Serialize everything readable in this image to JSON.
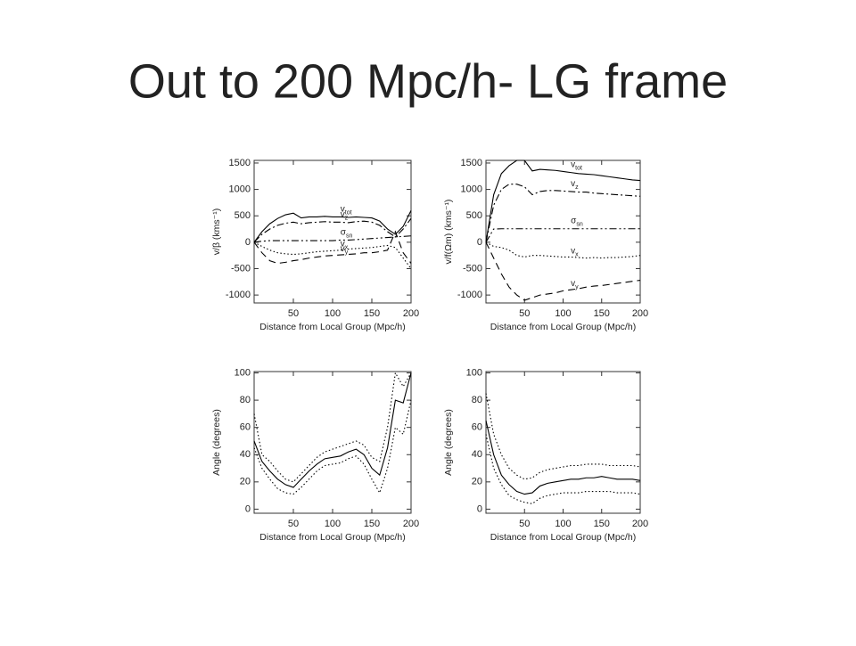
{
  "title": "Out to 200 Mpc/h- LG frame",
  "chart_data": [
    {
      "type": "line",
      "ylabel": "v/β (kms⁻¹)",
      "xlabel": "Distance from Local Group (Mpc/h)",
      "xlim": [
        0,
        200
      ],
      "ylim": [
        -1150,
        1550
      ],
      "xticks": [
        50,
        100,
        150,
        200
      ],
      "yticks": [
        -1000,
        -500,
        0,
        500,
        1000,
        1500
      ],
      "x": [
        0,
        10,
        20,
        30,
        40,
        50,
        60,
        70,
        80,
        90,
        100,
        110,
        120,
        130,
        140,
        150,
        160,
        170,
        180,
        190,
        200
      ],
      "series": [
        {
          "name": "v",
          "sub": "tot",
          "dash": "solid",
          "color": "#000000",
          "values": [
            0,
            200,
            350,
            450,
            520,
            550,
            460,
            480,
            480,
            490,
            480,
            480,
            470,
            480,
            470,
            460,
            400,
            250,
            150,
            300,
            600
          ]
        },
        {
          "name": "v",
          "sub": "z",
          "dash": "dashdot",
          "color": "#000000",
          "values": [
            0,
            150,
            250,
            320,
            360,
            380,
            350,
            370,
            380,
            390,
            380,
            380,
            370,
            390,
            400,
            380,
            320,
            200,
            100,
            250,
            450
          ]
        },
        {
          "name": "σ",
          "sub": "sn",
          "dash": "dashdotdot",
          "color": "#000000",
          "values": [
            0,
            20,
            30,
            30,
            30,
            30,
            30,
            30,
            30,
            30,
            30,
            40,
            40,
            50,
            60,
            70,
            80,
            90,
            100,
            110,
            120
          ]
        },
        {
          "name": "v",
          "sub": "x",
          "dash": "dotted",
          "color": "#000000",
          "values": [
            0,
            -80,
            -150,
            -200,
            -220,
            -230,
            -220,
            -200,
            -180,
            -170,
            -160,
            -150,
            -130,
            -120,
            -110,
            -100,
            -80,
            -60,
            -100,
            -300,
            -500
          ]
        },
        {
          "name": "v",
          "sub": "y",
          "dash": "dashed",
          "color": "#000000",
          "values": [
            0,
            -200,
            -350,
            -400,
            -380,
            -350,
            -330,
            -300,
            -280,
            -260,
            -250,
            -240,
            -230,
            -220,
            -200,
            -200,
            -180,
            -150,
            200,
            -200,
            -400
          ]
        }
      ]
    },
    {
      "type": "line",
      "ylabel": "v/f(Ωm) (kms⁻¹)",
      "xlabel": "Distance from Local Group (Mpc/h)",
      "xlim": [
        0,
        200
      ],
      "ylim": [
        -1150,
        1550
      ],
      "xticks": [
        50,
        100,
        150,
        200
      ],
      "yticks": [
        -1000,
        -500,
        0,
        500,
        1000,
        1500
      ],
      "x": [
        0,
        10,
        20,
        30,
        40,
        50,
        60,
        70,
        80,
        90,
        100,
        110,
        120,
        130,
        140,
        150,
        160,
        170,
        180,
        190,
        200
      ],
      "series": [
        {
          "name": "v",
          "sub": "tot",
          "dash": "solid",
          "color": "#000000",
          "values": [
            0,
            900,
            1300,
            1450,
            1550,
            1550,
            1350,
            1380,
            1370,
            1360,
            1340,
            1320,
            1300,
            1290,
            1280,
            1260,
            1240,
            1220,
            1200,
            1180,
            1170
          ]
        },
        {
          "name": "v",
          "sub": "z",
          "dash": "dashdot",
          "color": "#000000",
          "values": [
            0,
            700,
            1000,
            1100,
            1100,
            1050,
            900,
            960,
            980,
            980,
            970,
            960,
            950,
            950,
            930,
            920,
            910,
            900,
            890,
            880,
            870
          ]
        },
        {
          "name": "σ",
          "sub": "sn",
          "dash": "dashdotdot",
          "color": "#000000",
          "values": [
            0,
            250,
            255,
            255,
            255,
            255,
            255,
            255,
            255,
            255,
            255,
            255,
            255,
            255,
            255,
            255,
            255,
            255,
            255,
            255,
            255
          ]
        },
        {
          "name": "v",
          "sub": "x",
          "dash": "dotted",
          "color": "#000000",
          "values": [
            0,
            -80,
            -100,
            -150,
            -250,
            -280,
            -250,
            -250,
            -260,
            -270,
            -280,
            -280,
            -290,
            -300,
            -290,
            -300,
            -290,
            -290,
            -280,
            -270,
            -250
          ]
        },
        {
          "name": "v",
          "sub": "y",
          "dash": "dashed",
          "color": "#000000",
          "values": [
            0,
            -300,
            -600,
            -850,
            -1000,
            -1100,
            -1050,
            -1000,
            -980,
            -960,
            -920,
            -900,
            -880,
            -850,
            -830,
            -820,
            -800,
            -780,
            -760,
            -740,
            -720
          ]
        }
      ]
    },
    {
      "type": "line",
      "ylabel": "Angle (degrees)",
      "xlabel": "Distance from Local Group (Mpc/h)",
      "xlim": [
        0,
        200
      ],
      "ylim": [
        -3,
        101
      ],
      "xticks": [
        50,
        100,
        150,
        200
      ],
      "yticks": [
        0,
        20,
        40,
        60,
        80,
        100
      ],
      "x": [
        0,
        10,
        20,
        30,
        40,
        50,
        60,
        70,
        80,
        90,
        100,
        110,
        120,
        130,
        140,
        150,
        160,
        170,
        180,
        190,
        200
      ],
      "series": [
        {
          "dash": "solid",
          "color": "#000000",
          "values": [
            50,
            35,
            28,
            22,
            18,
            16,
            22,
            28,
            33,
            37,
            38,
            39,
            42,
            44,
            40,
            30,
            25,
            45,
            80,
            78,
            100
          ]
        },
        {
          "dash": "dotted",
          "color": "#000000",
          "values": [
            70,
            40,
            35,
            28,
            22,
            20,
            26,
            32,
            38,
            42,
            44,
            46,
            48,
            50,
            47,
            38,
            35,
            60,
            100,
            90,
            100
          ]
        },
        {
          "dash": "dotted",
          "color": "#000000",
          "values": [
            45,
            30,
            22,
            15,
            12,
            11,
            16,
            22,
            28,
            32,
            33,
            34,
            37,
            39,
            33,
            22,
            12,
            30,
            60,
            55,
            80
          ]
        }
      ]
    },
    {
      "type": "line",
      "ylabel": "Angle (degrees)",
      "xlabel": "Distance from Local Group (Mpc/h)",
      "xlim": [
        0,
        200
      ],
      "ylim": [
        -3,
        101
      ],
      "xticks": [
        50,
        100,
        150,
        200
      ],
      "yticks": [
        0,
        20,
        40,
        60,
        80,
        100
      ],
      "x": [
        0,
        10,
        20,
        30,
        40,
        50,
        60,
        70,
        80,
        90,
        100,
        110,
        120,
        130,
        140,
        150,
        160,
        170,
        180,
        190,
        200
      ],
      "series": [
        {
          "dash": "solid",
          "color": "#000000",
          "values": [
            65,
            40,
            25,
            18,
            13,
            11,
            12,
            17,
            19,
            20,
            21,
            22,
            22,
            23,
            23,
            24,
            23,
            22,
            22,
            22,
            21
          ]
        },
        {
          "dash": "dotted",
          "color": "#000000",
          "values": [
            85,
            55,
            40,
            30,
            25,
            22,
            23,
            27,
            29,
            30,
            31,
            32,
            32,
            33,
            33,
            33,
            32,
            32,
            32,
            32,
            31
          ]
        },
        {
          "dash": "dotted",
          "color": "#000000",
          "values": [
            55,
            30,
            18,
            10,
            7,
            5,
            4,
            8,
            10,
            11,
            12,
            12,
            12,
            13,
            13,
            13,
            13,
            12,
            12,
            12,
            11
          ]
        }
      ]
    }
  ]
}
